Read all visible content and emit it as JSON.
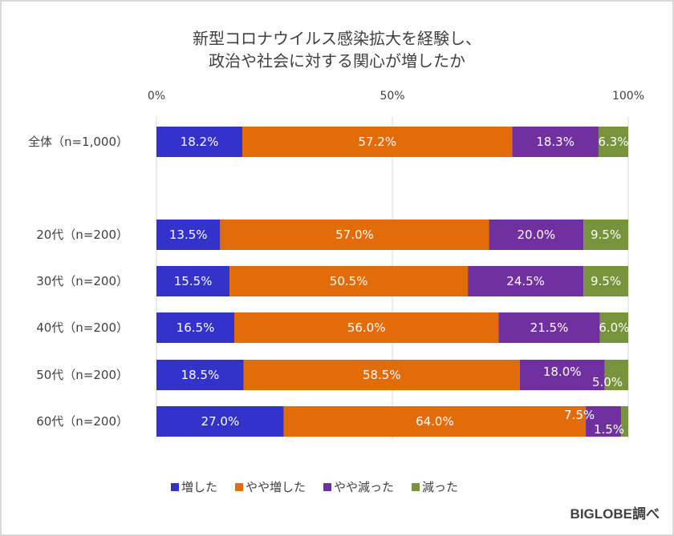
{
  "chart_data": {
    "type": "bar",
    "orientation": "horizontal",
    "stacked": true,
    "title": [
      "新型コロナウイルス感染拡大を経験し、",
      "政治や社会に対する関心が増したか"
    ],
    "categories": [
      "全体（n=1,000）",
      "20代（n=200）",
      "30代（n=200）",
      "40代（n=200）",
      "50代（n=200）",
      "60代（n=200）"
    ],
    "series": [
      {
        "name": "増した",
        "color": "#3333cc",
        "values": [
          18.2,
          13.5,
          15.5,
          16.5,
          18.5,
          27.0
        ],
        "labels": [
          "18.2%",
          "13.5%",
          "15.5%",
          "16.5%",
          "18.5%",
          "27.0%"
        ]
      },
      {
        "name": "やや増した",
        "color": "#e36c0a",
        "values": [
          57.2,
          57.0,
          50.5,
          56.0,
          58.5,
          64.0
        ],
        "labels": [
          "57.2%",
          "57.0%",
          "50.5%",
          "56.0%",
          "58.5%",
          "64.0%"
        ]
      },
      {
        "name": "やや減った",
        "color": "#7030a0",
        "values": [
          18.3,
          20.0,
          24.5,
          21.5,
          18.0,
          7.5
        ],
        "labels": [
          "18.3%",
          "20.0%",
          "24.5%",
          "21.5%",
          "18.0%",
          "7.5%"
        ]
      },
      {
        "name": "減った",
        "color": "#77933c",
        "values": [
          6.3,
          9.5,
          9.5,
          6.0,
          5.0,
          1.5
        ],
        "labels": [
          "6.3%",
          "9.5%",
          "9.5%",
          "6.0%",
          "5.0%",
          "1.5%"
        ]
      }
    ],
    "xlim": [
      0,
      100
    ],
    "xticks": [
      0,
      50,
      100
    ],
    "xtick_labels": [
      "0%",
      "50%",
      "100%"
    ],
    "xaxis_position": "top",
    "grid": true,
    "legend_position": "bottom",
    "xlabel": "",
    "ylabel": ""
  },
  "credit": "BIGLOBE調べ"
}
